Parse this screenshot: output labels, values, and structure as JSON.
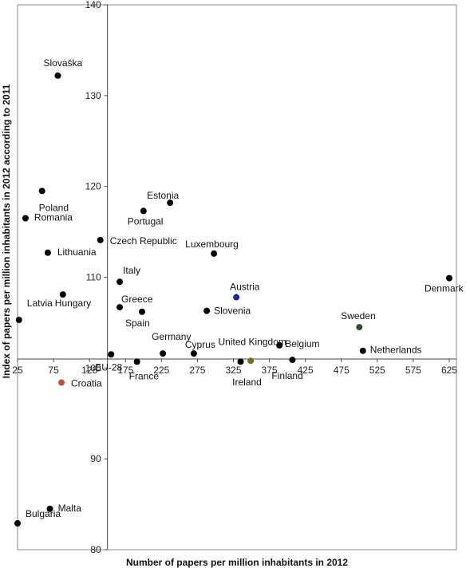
{
  "chart_data": {
    "type": "scatter",
    "xlabel": "Number of papers per million inhabitants in 2012",
    "ylabel": "Index of papers per million inhabitants in 2012 according to 2011",
    "xlim": [
      25,
      635
    ],
    "ylim": [
      80,
      140
    ],
    "x_ticks": [
      "25",
      "75",
      "125",
      "175",
      "225",
      "275",
      "325",
      "375",
      "425",
      "475",
      "525",
      "575",
      "625"
    ],
    "y_ticks": [
      "80",
      "90",
      "100",
      "110",
      "120",
      "130",
      "140"
    ],
    "points": [
      {
        "label": "Slovaška",
        "x": 81,
        "y": 132.2,
        "color": "#000000"
      },
      {
        "label": "Poland",
        "x": 59,
        "y": 119.5,
        "color": "#000000"
      },
      {
        "label": "Romania",
        "x": 36,
        "y": 116.5,
        "color": "#000000"
      },
      {
        "label": "Lithuania",
        "x": 67,
        "y": 112.7,
        "color": "#000000"
      },
      {
        "label": "Hungary",
        "x": 88,
        "y": 108.1,
        "color": "#000000"
      },
      {
        "label": "Latvia",
        "x": 27,
        "y": 105.3,
        "color": "#000000"
      },
      {
        "label": "Croatia",
        "x": 86,
        "y": 98.4,
        "color": "#c0503a"
      },
      {
        "label": "Malta",
        "x": 70,
        "y": 84.5,
        "color": "#000000"
      },
      {
        "label": "Bulgaria",
        "x": 25,
        "y": 82.9,
        "color": "#000000"
      },
      {
        "label": "EU-28",
        "x": 155,
        "y": 101.5,
        "color": "#000000"
      },
      {
        "label": "Czech Republic",
        "x": 140,
        "y": 114.1,
        "color": "#000000"
      },
      {
        "label": "Estonia",
        "x": 237,
        "y": 118.2,
        "color": "#000000"
      },
      {
        "label": "Portugal",
        "x": 200,
        "y": 117.3,
        "color": "#000000"
      },
      {
        "label": "Luxembourg",
        "x": 298,
        "y": 112.6,
        "color": "#000000"
      },
      {
        "label": "Italy",
        "x": 167,
        "y": 109.5,
        "color": "#000000"
      },
      {
        "label": "Greece",
        "x": 167,
        "y": 106.7,
        "color": "#000000"
      },
      {
        "label": "Spain",
        "x": 198,
        "y": 106.2,
        "color": "#000000"
      },
      {
        "label": "Germany",
        "x": 227,
        "y": 101.6,
        "color": "#000000"
      },
      {
        "label": "France",
        "x": 191,
        "y": 100.7,
        "color": "#000000"
      },
      {
        "label": "Cyprus",
        "x": 270,
        "y": 101.6,
        "color": "#000000"
      },
      {
        "label": "Austria",
        "x": 329,
        "y": 107.8,
        "color": "#1a2a9a"
      },
      {
        "label": "Slovenia",
        "x": 288,
        "y": 106.3,
        "color": "#000000"
      },
      {
        "label": "United Kingdom",
        "x": 335,
        "y": 100.7,
        "color": "#000000"
      },
      {
        "label": "Ireland",
        "x": 349,
        "y": 100.8,
        "color": "#707020"
      },
      {
        "label": "Belgium",
        "x": 389,
        "y": 102.5,
        "color": "#000000"
      },
      {
        "label": "Finland",
        "x": 407,
        "y": 100.9,
        "color": "#000000"
      },
      {
        "label": "Sweden",
        "x": 500,
        "y": 104.5,
        "color": "#2f4f2f"
      },
      {
        "label": "Netherlands",
        "x": 505,
        "y": 101.9,
        "color": "#000000"
      },
      {
        "label": "Denmark",
        "x": 625,
        "y": 109.9,
        "color": "#000000"
      }
    ],
    "highlight": {
      "label": "Slovenia",
      "color": "#ff0000"
    },
    "grid": false,
    "legend": "none"
  }
}
